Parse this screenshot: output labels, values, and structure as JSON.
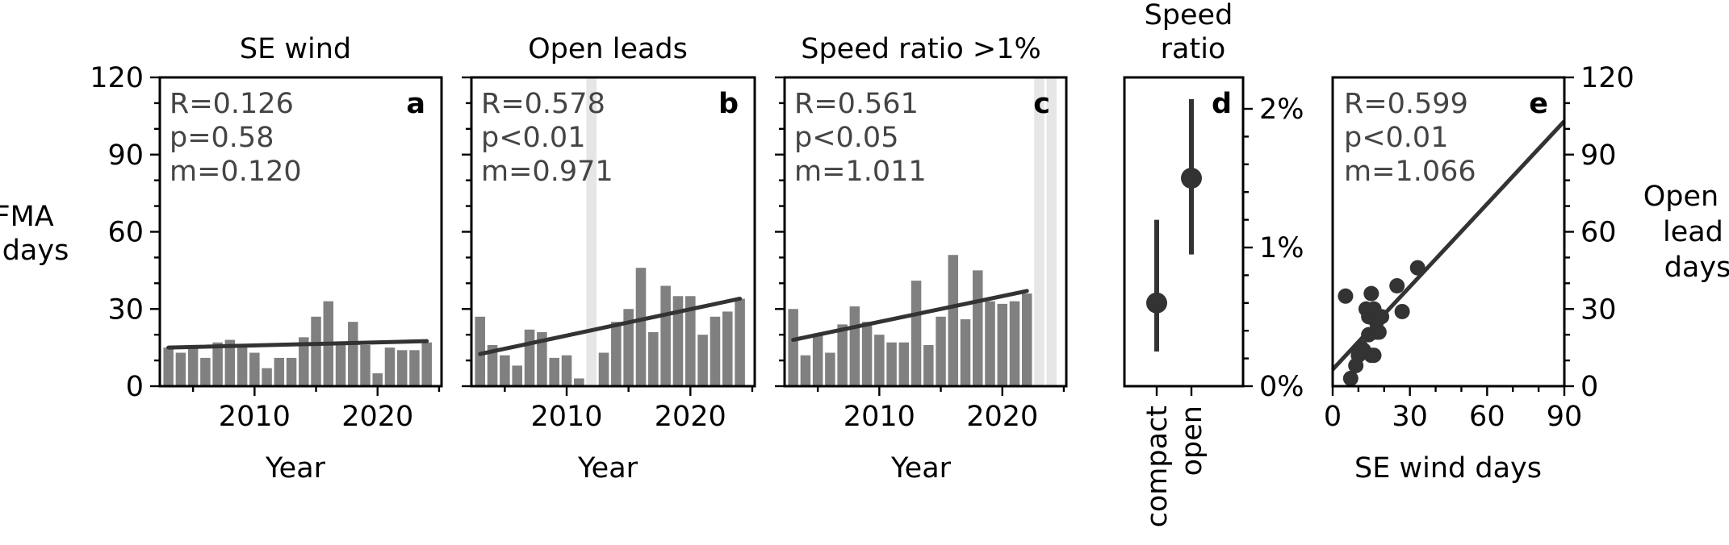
{
  "chart_data": [
    {
      "panel": "a",
      "type": "bar",
      "title": "SE wind",
      "xlabel": "Year",
      "ylabel": "JFMA\ndays",
      "xlim": [
        2002.3,
        2025.2
      ],
      "ylim": [
        0,
        120
      ],
      "xticks": [
        2010,
        2020
      ],
      "xtick_labels": [
        "2010",
        "2020"
      ],
      "yticks": [
        0,
        30,
        60,
        90,
        120
      ],
      "ytick_labels": [
        "0",
        "30",
        "60",
        "90",
        "120"
      ],
      "years": [
        2003,
        2004,
        2005,
        2006,
        2007,
        2008,
        2009,
        2010,
        2011,
        2012,
        2013,
        2014,
        2015,
        2016,
        2017,
        2018,
        2019,
        2020,
        2021,
        2022,
        2023,
        2024
      ],
      "values": [
        15,
        13,
        16,
        11,
        17,
        18,
        16,
        13,
        7,
        11,
        11,
        19,
        27,
        33,
        17,
        25,
        16,
        5,
        15,
        14,
        14,
        17
      ],
      "trend": {
        "x": [
          2003,
          2024
        ],
        "y": [
          15,
          17.5
        ]
      },
      "stats": [
        "R=0.126",
        "p=0.58",
        "m=0.120"
      ],
      "letter": "a",
      "colors": {
        "bar": "#808080",
        "trend": "#333333"
      }
    },
    {
      "panel": "b",
      "type": "bar",
      "title": "Open leads",
      "xlabel": "Year",
      "xlim": [
        2002.3,
        2025.2
      ],
      "ylim": [
        0,
        120
      ],
      "xticks": [
        2010,
        2020
      ],
      "xtick_labels": [
        "2010",
        "2020"
      ],
      "years": [
        2003,
        2004,
        2005,
        2006,
        2007,
        2008,
        2009,
        2010,
        2011,
        2013,
        2014,
        2015,
        2016,
        2017,
        2018,
        2019,
        2020,
        2021,
        2022,
        2023,
        2024
      ],
      "values": [
        27,
        16,
        12,
        8,
        22,
        21,
        11,
        12,
        3,
        13,
        25,
        30,
        46,
        21,
        39,
        35,
        35,
        20,
        27,
        29,
        34
      ],
      "shaded_years": [
        2012
      ],
      "trend": {
        "x": [
          2003,
          2024
        ],
        "y": [
          12.5,
          34
        ]
      },
      "stats": [
        "R=0.578",
        "p<0.01",
        "m=0.971"
      ],
      "letter": "b",
      "colors": {
        "bar": "#808080",
        "trend": "#333333",
        "shade": "#e6e6e6"
      }
    },
    {
      "panel": "c",
      "type": "bar",
      "title": "Speed ratio >1%",
      "xlabel": "Year",
      "xlim": [
        2002.3,
        2025.2
      ],
      "ylim": [
        0,
        120
      ],
      "xticks": [
        2010,
        2020
      ],
      "xtick_labels": [
        "2010",
        "2020"
      ],
      "years": [
        2003,
        2004,
        2005,
        2006,
        2007,
        2008,
        2009,
        2010,
        2011,
        2012,
        2013,
        2014,
        2015,
        2016,
        2017,
        2018,
        2019,
        2020,
        2021,
        2022
      ],
      "values": [
        30,
        12,
        20,
        13,
        24,
        31,
        25,
        20,
        17,
        17,
        41,
        16,
        27,
        51,
        26,
        45,
        33,
        32,
        33,
        36
      ],
      "shaded_years": [
        2023,
        2024
      ],
      "trend": {
        "x": [
          2003,
          2022
        ],
        "y": [
          18,
          37
        ]
      },
      "stats": [
        "R=0.561",
        "p<0.05",
        "m=1.011"
      ],
      "letter": "c",
      "colors": {
        "bar": "#808080",
        "trend": "#333333",
        "shade": "#e6e6e6"
      }
    },
    {
      "panel": "d",
      "type": "scatter",
      "title": "Speed\nratio",
      "categories": [
        "compact",
        "open"
      ],
      "points": [
        {
          "category": "compact",
          "value": 0.6,
          "low": 0.25,
          "high": 1.2
        },
        {
          "category": "open",
          "value": 1.5,
          "low": 0.95,
          "high": 2.07
        }
      ],
      "ylim": [
        0,
        2.2
      ],
      "yticks": [
        0,
        1,
        2
      ],
      "ytick_labels": [
        "0%",
        "1%",
        "2%"
      ],
      "letter": "d",
      "colors": {
        "marker": "#333333"
      }
    },
    {
      "panel": "e",
      "type": "scatter",
      "xlabel": "SE wind days",
      "ylabel": "Open\nlead\ndays",
      "xlim": [
        0,
        90
      ],
      "ylim": [
        0,
        120
      ],
      "xticks": [
        0,
        30,
        60,
        90
      ],
      "xtick_labels": [
        "0",
        "30",
        "60",
        "90"
      ],
      "yticks": [
        0,
        30,
        60,
        90,
        120
      ],
      "ytick_labels": [
        "0",
        "30",
        "60",
        "90",
        "120"
      ],
      "points": [
        [
          5,
          35
        ],
        [
          7,
          3
        ],
        [
          9,
          8
        ],
        [
          10,
          12
        ],
        [
          11,
          15
        ],
        [
          12,
          14
        ],
        [
          13,
          30
        ],
        [
          14,
          27
        ],
        [
          14,
          20
        ],
        [
          15,
          36
        ],
        [
          15,
          12
        ],
        [
          16,
          12
        ],
        [
          16,
          30
        ],
        [
          17,
          25
        ],
        [
          17,
          21
        ],
        [
          18,
          21
        ],
        [
          19,
          27
        ],
        [
          25,
          39
        ],
        [
          27,
          29
        ],
        [
          33,
          46
        ]
      ],
      "trend": {
        "x": [
          0,
          90
        ],
        "y": [
          6.5,
          103
        ]
      },
      "stats": [
        "R=0.599",
        "p<0.01",
        "m=1.066"
      ],
      "letter": "e",
      "colors": {
        "marker": "#333333",
        "trend": "#333333"
      }
    }
  ]
}
